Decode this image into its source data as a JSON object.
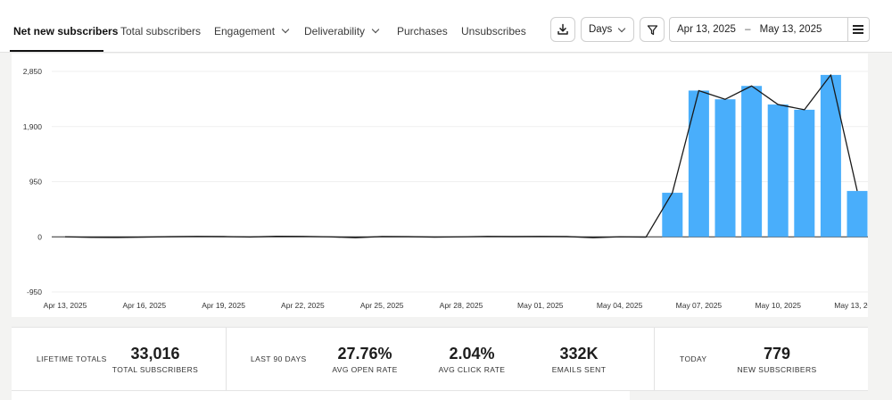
{
  "tabs": [
    {
      "label": "Net new subscribers",
      "active": true,
      "dropdown": false
    },
    {
      "label": "Total subscribers",
      "active": false,
      "dropdown": false
    },
    {
      "label": "Engagement",
      "active": false,
      "dropdown": true
    },
    {
      "label": "Deliverability",
      "active": false,
      "dropdown": true
    },
    {
      "label": "Purchases",
      "active": false,
      "dropdown": false
    },
    {
      "label": "Unsubscribes",
      "active": false,
      "dropdown": false
    }
  ],
  "toolbar": {
    "download_icon": "download-icon",
    "interval_label": "Days",
    "filter_icon": "filter-icon",
    "date_start": "Apr 13, 2025",
    "date_sep": "–",
    "date_end": "May 13, 2025",
    "menu_icon": "hamburger-menu-icon"
  },
  "colors": {
    "bar": "#49aefb",
    "line": "#1a1a1a",
    "grid": "#efefef",
    "zero_line": "#2a2a2a",
    "active_tab": "#111111"
  },
  "chart_data": {
    "type": "bar",
    "categories": [
      "Apr 13, 2025",
      "Apr 14, 2025",
      "Apr 15, 2025",
      "Apr 16, 2025",
      "Apr 17, 2025",
      "Apr 18, 2025",
      "Apr 19, 2025",
      "Apr 20, 2025",
      "Apr 21, 2025",
      "Apr 22, 2025",
      "Apr 23, 2025",
      "Apr 24, 2025",
      "Apr 25, 2025",
      "Apr 26, 2025",
      "Apr 27, 2025",
      "Apr 28, 2025",
      "Apr 29, 2025",
      "Apr 30, 2025",
      "May 01, 2025",
      "May 02, 2025",
      "May 03, 2025",
      "May 04, 2025",
      "May 05, 2025",
      "May 06, 2025",
      "May 07, 2025",
      "May 08, 2025",
      "May 09, 2025",
      "May 10, 2025",
      "May 11, 2025",
      "May 12, 2025",
      "May 13, 2025"
    ],
    "tick_labels": [
      "Apr 13, 2025",
      "Apr 16, 2025",
      "Apr 19, 2025",
      "Apr 22, 2025",
      "Apr 25, 2025",
      "Apr 28, 2025",
      "May 01, 2025",
      "May 04, 2025",
      "May 07, 2025",
      "May 10, 2025",
      "May 13, 2025"
    ],
    "series": [
      {
        "type": "bar",
        "values": [
          0,
          0,
          0,
          0,
          0,
          0,
          0,
          0,
          0,
          0,
          0,
          0,
          0,
          0,
          0,
          0,
          0,
          0,
          0,
          0,
          0,
          0,
          0,
          760,
          2520,
          2370,
          2600,
          2280,
          2190,
          2790,
          790
        ]
      },
      {
        "type": "line",
        "values": [
          0,
          -10,
          -12,
          -5,
          3,
          8,
          5,
          -3,
          10,
          8,
          0,
          -15,
          5,
          3,
          -5,
          0,
          8,
          5,
          8,
          5,
          -15,
          0,
          -5,
          760,
          2520,
          2370,
          2600,
          2280,
          2190,
          2790,
          790
        ]
      }
    ],
    "yticks": [
      2850,
      1900,
      950,
      0,
      -950
    ],
    "ytick_labels": [
      "2,850",
      "1,900",
      "950",
      "0",
      "-950"
    ],
    "ylim": [
      -950,
      2850
    ],
    "grid": true
  },
  "stats": {
    "lifetime_label": "LIFETIME TOTALS",
    "total_subscribers_value": "33,016",
    "total_subscribers_label": "TOTAL SUBSCRIBERS",
    "last90_label": "LAST 90 DAYS",
    "open_rate_value": "27.76%",
    "open_rate_label": "AVG OPEN RATE",
    "click_rate_value": "2.04%",
    "click_rate_label": "AVG CLICK RATE",
    "emails_sent_value": "332K",
    "emails_sent_label": "EMAILS SENT",
    "today_label": "TODAY",
    "new_subscribers_value": "779",
    "new_subscribers_label": "NEW SUBSCRIBERS"
  }
}
